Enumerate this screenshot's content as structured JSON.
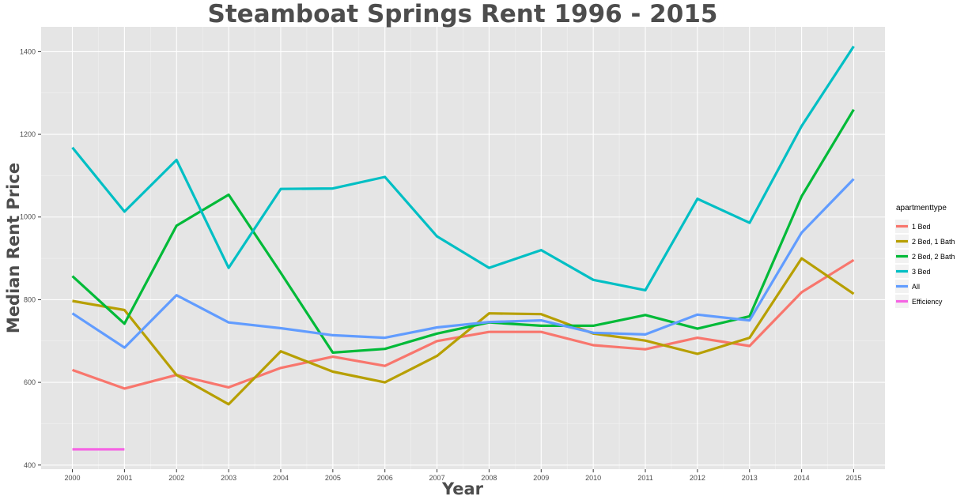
{
  "chart_data": {
    "type": "line",
    "title": "Steamboat Springs Rent 1996 - 2015",
    "xlabel": "Year",
    "ylabel": "Median Rent Price",
    "xlim": [
      1999.4,
      2015.6
    ],
    "ylim": [
      390,
      1460
    ],
    "x_ticks": [
      2000,
      2001,
      2002,
      2003,
      2004,
      2005,
      2006,
      2007,
      2008,
      2009,
      2010,
      2011,
      2012,
      2013,
      2014,
      2015
    ],
    "y_ticks": [
      400,
      600,
      800,
      1000,
      1200,
      1400
    ],
    "grid": true,
    "legend": {
      "title": "apartmenttype",
      "position": "right"
    },
    "series": [
      {
        "name": "1 Bed",
        "color": "#F8766D",
        "x": [
          2000,
          2001,
          2002,
          2003,
          2004,
          2005,
          2006,
          2007,
          2008,
          2009,
          2010,
          2011,
          2012,
          2013,
          2014,
          2015
        ],
        "values": [
          630,
          585,
          618,
          588,
          635,
          662,
          640,
          700,
          722,
          722,
          690,
          680,
          708,
          688,
          818,
          896
        ]
      },
      {
        "name": "2 Bed, 1 Bath",
        "color": "#B79F00",
        "x": [
          2000,
          2001,
          2002,
          2003,
          2004,
          2005,
          2006,
          2007,
          2008,
          2009,
          2010,
          2011,
          2012,
          2013,
          2014,
          2015
        ],
        "values": [
          797,
          775,
          618,
          547,
          675,
          626,
          600,
          664,
          767,
          765,
          718,
          701,
          669,
          708,
          900,
          814
        ]
      },
      {
        "name": "2 Bed, 2 Bath",
        "color": "#00BA38",
        "x": [
          2000,
          2001,
          2002,
          2003,
          2004,
          2005,
          2006,
          2007,
          2008,
          2009,
          2010,
          2011,
          2012,
          2013,
          2014,
          2015
        ],
        "values": [
          857,
          742,
          979,
          1054,
          865,
          672,
          681,
          718,
          745,
          737,
          737,
          763,
          730,
          760,
          1050,
          1260
        ]
      },
      {
        "name": "3 Bed",
        "color": "#00BFC4",
        "x": [
          2000,
          2001,
          2002,
          2003,
          2004,
          2005,
          2006,
          2007,
          2008,
          2009,
          2010,
          2011,
          2012,
          2013,
          2014,
          2015
        ],
        "values": [
          1168,
          1013,
          1138,
          877,
          1068,
          1069,
          1097,
          953,
          877,
          920,
          848,
          823,
          1044,
          986,
          1220,
          1413
        ]
      },
      {
        "name": "All",
        "color": "#619CFF",
        "x": [
          2000,
          2001,
          2002,
          2003,
          2004,
          2005,
          2006,
          2007,
          2008,
          2009,
          2010,
          2011,
          2012,
          2013,
          2014,
          2015
        ],
        "values": [
          767,
          684,
          811,
          745,
          731,
          714,
          708,
          733,
          746,
          750,
          720,
          716,
          764,
          750,
          962,
          1092
        ]
      },
      {
        "name": "Efficiency",
        "color": "#F564E3",
        "x": [
          2000,
          2001
        ],
        "values": [
          438,
          438
        ]
      }
    ]
  }
}
